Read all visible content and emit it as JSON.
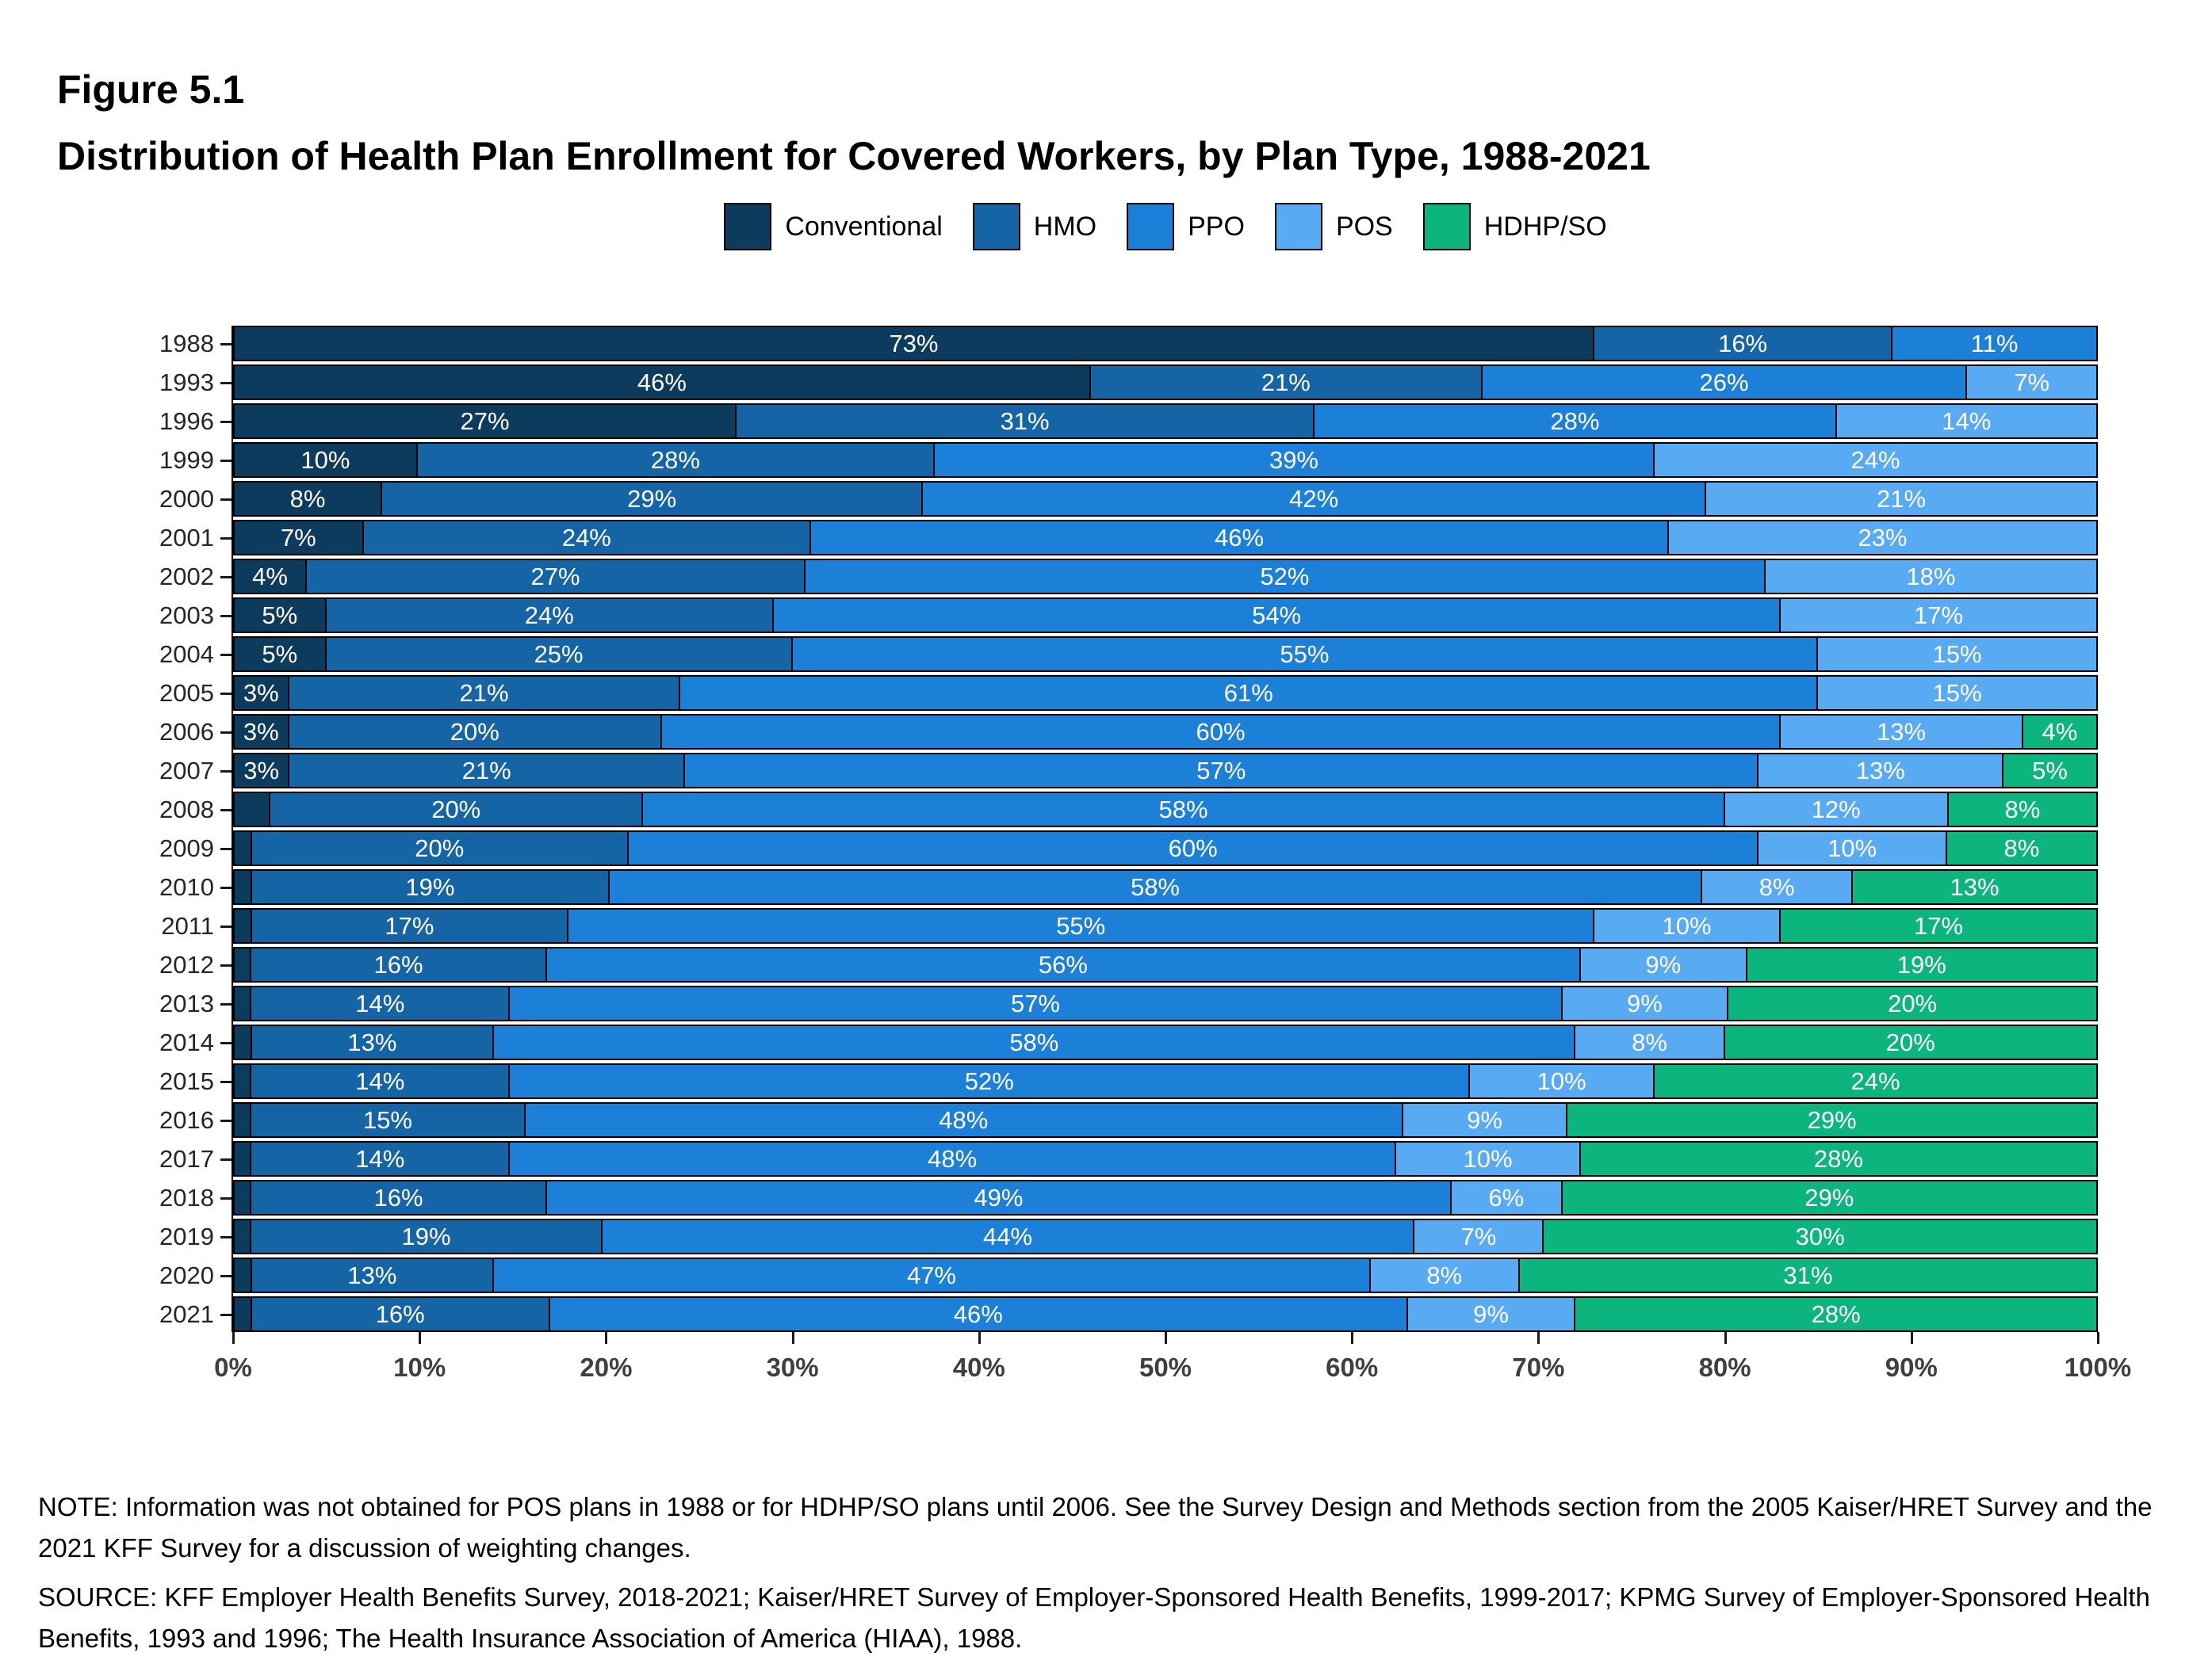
{
  "figure": {
    "label": "Figure 5.1",
    "title": "Distribution of Health Plan Enrollment for Covered Workers, by Plan Type, 1988-2021"
  },
  "legend": [
    {
      "label": "Conventional",
      "color": "#0c3b5d"
    },
    {
      "label": "HMO",
      "color": "#1464a6"
    },
    {
      "label": "PPO",
      "color": "#1d80d8"
    },
    {
      "label": "POS",
      "color": "#58abf2"
    },
    {
      "label": "HDHP/SO",
      "color": "#0bb57d"
    }
  ],
  "chart_data": {
    "type": "bar",
    "orientation": "horizontal",
    "stacked": true,
    "grid": false,
    "legend_position": "top",
    "xlim": [
      0,
      100
    ],
    "x_ticks": [
      "0%",
      "10%",
      "20%",
      "30%",
      "40%",
      "50%",
      "60%",
      "70%",
      "80%",
      "90%",
      "100%"
    ],
    "label_min_value": 3,
    "title": "Distribution of Health Plan Enrollment for Covered Workers, by Plan Type, 1988-2021",
    "categories": [
      "1988",
      "1993",
      "1996",
      "1999",
      "2000",
      "2001",
      "2002",
      "2003",
      "2004",
      "2005",
      "2006",
      "2007",
      "2008",
      "2009",
      "2010",
      "2011",
      "2012",
      "2013",
      "2014",
      "2015",
      "2016",
      "2017",
      "2018",
      "2019",
      "2020",
      "2021"
    ],
    "series": [
      {
        "name": "Conventional",
        "values": [
          73,
          46,
          27,
          10,
          8,
          7,
          4,
          5,
          5,
          3,
          3,
          3,
          2,
          1,
          1,
          1,
          1,
          1,
          1,
          1,
          1,
          1,
          1,
          1,
          1,
          1
        ]
      },
      {
        "name": "HMO",
        "values": [
          16,
          21,
          31,
          28,
          29,
          24,
          27,
          24,
          25,
          21,
          20,
          21,
          20,
          20,
          19,
          17,
          16,
          14,
          13,
          14,
          15,
          14,
          16,
          19,
          13,
          16
        ]
      },
      {
        "name": "PPO",
        "values": [
          11,
          26,
          28,
          39,
          42,
          46,
          52,
          54,
          55,
          61,
          60,
          57,
          58,
          60,
          58,
          55,
          56,
          57,
          58,
          52,
          48,
          48,
          49,
          44,
          47,
          46
        ]
      },
      {
        "name": "POS",
        "values": [
          null,
          7,
          14,
          24,
          21,
          23,
          18,
          17,
          15,
          15,
          13,
          13,
          12,
          10,
          8,
          10,
          9,
          9,
          8,
          10,
          9,
          10,
          6,
          7,
          8,
          9
        ]
      },
      {
        "name": "HDHP/SO",
        "values": [
          null,
          null,
          null,
          null,
          null,
          null,
          null,
          null,
          null,
          null,
          4,
          5,
          8,
          8,
          13,
          17,
          19,
          20,
          20,
          24,
          29,
          28,
          29,
          30,
          31,
          28
        ]
      }
    ]
  },
  "notes": {
    "note": "NOTE: Information was not obtained for POS plans in 1988 or for HDHP/SO plans until 2006. See the Survey Design and Methods section from the 2005 Kaiser/HRET Survey and the 2021 KFF Survey for a discussion of weighting changes.",
    "source": "SOURCE: KFF Employer Health Benefits Survey, 2018-2021; Kaiser/HRET Survey of Employer-Sponsored Health Benefits, 1999-2017; KPMG Survey of Employer-Sponsored Health Benefits, 1993 and 1996; The Health Insurance Association of America (HIAA), 1988."
  }
}
